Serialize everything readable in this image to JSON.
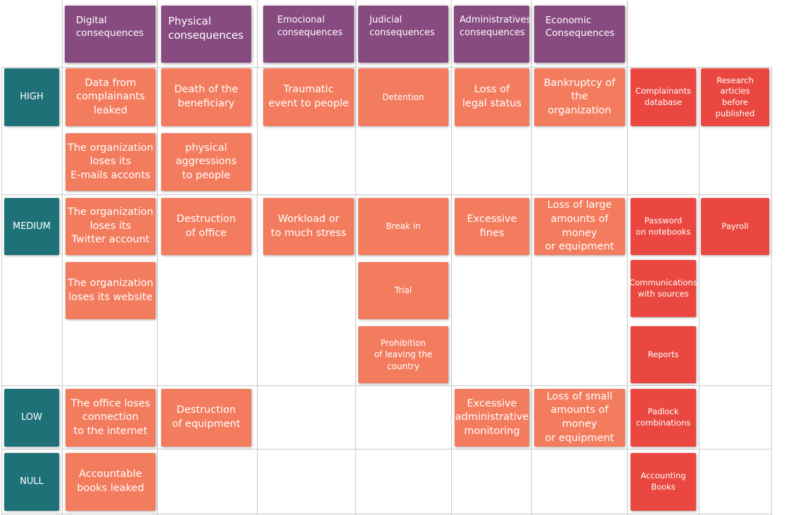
{
  "categories": [
    "Digital\nconsequences",
    "Physical\nconsequences",
    "Emocional\nconsequences",
    "Judicial\nconsequences",
    "Administratives\nconsequences",
    "Economic\nConsequences"
  ],
  "levels": [
    "HIGH",
    "MEDIUM",
    "LOW",
    "NULL"
  ],
  "consequences": {
    "digital_high_1": "Data from\ncomplainants\nleaked",
    "digital_high_2": "The organization\nloses its\nE-mails acconts",
    "physical_high_1": "Death of the\nbeneficiary",
    "physical_high_2": "physical\naggressions\nto people",
    "emotional_high": "Traumatic\nevent to people",
    "judicial_high": "Detention",
    "admin_high": "Loss of\nlegal status",
    "economic_high": "Bankruptcy of the\norganization",
    "digital_medium_1": "The organization\nloses its\nTwitter account",
    "digital_medium_2": "The organization\nloses its website",
    "physical_medium": "Destruction\nof office",
    "emotional_medium": "Workload or\nto much stress",
    "judicial_medium_1": "Break in",
    "judicial_medium_2": "Trial",
    "judicial_medium_3": "Prohibition\nof leaving the country",
    "admin_medium": "Excessive\nfines",
    "economic_medium": "Loss of large\namounts of money\nor equipment",
    "digital_low": "The office loses\nconnection\nto the internet",
    "physical_low": "Destruction\nof equipment",
    "admin_low": "Excessive\nadministrative\nmonitoring",
    "economic_low": "Loss of small\namounts of money\nor equipment",
    "digital_null": "Accountable\nbooks leaked"
  },
  "assets": {
    "high_1": "Complainants\ndatabase",
    "high_2": "Research\narticles\nbefore\npublished",
    "medium_1": "Password\non notebooks",
    "medium_2": "Payroll",
    "medium_3": "Communications\nwith sources",
    "medium_4": "Reports",
    "low_1": "Padlock\ncombinations",
    "null_1": "Accounting\nBooks"
  },
  "colors": {
    "category": "#884b80",
    "level": "#1e7277",
    "consequence": "#f37c5e",
    "asset": "#e9473f"
  }
}
